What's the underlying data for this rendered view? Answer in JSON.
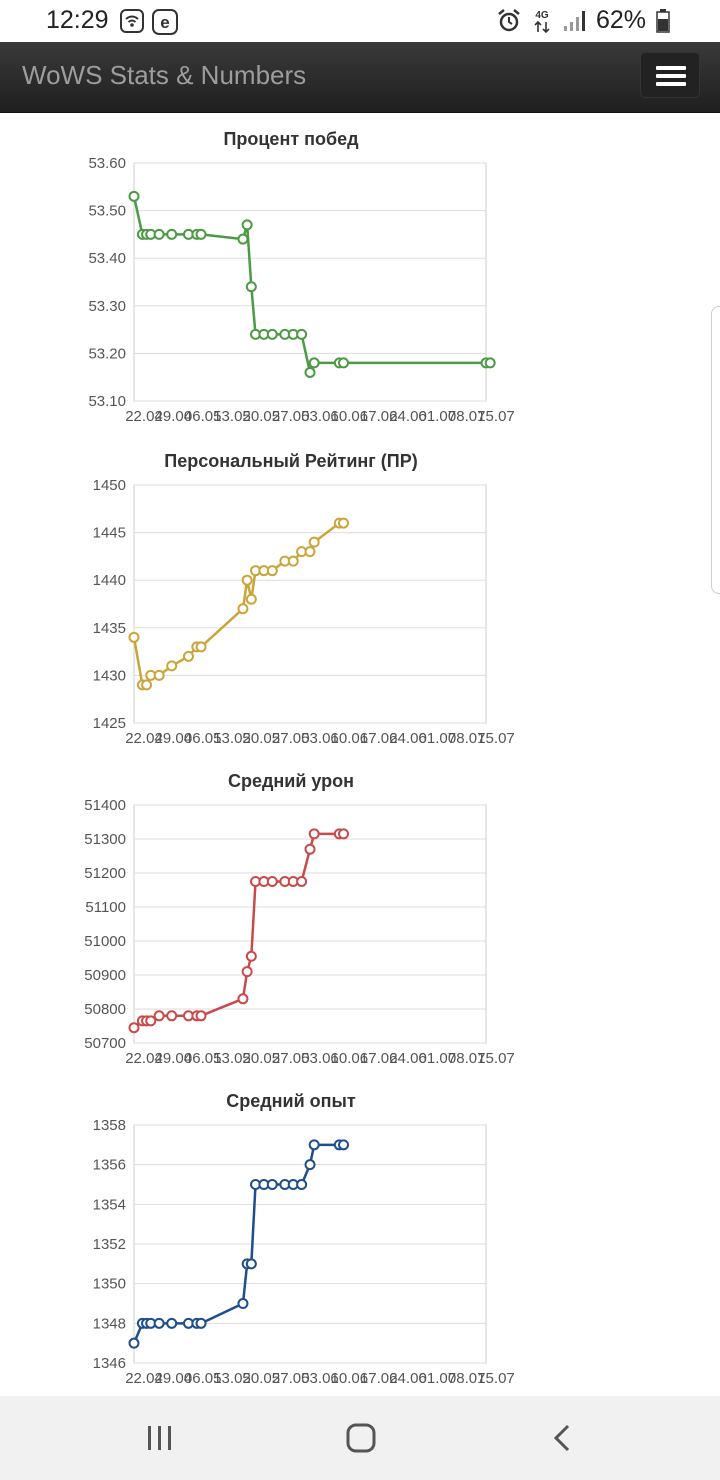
{
  "status_bar": {
    "time": "12:29",
    "left_icons": [
      "wifi-calling-icon",
      "e-badge-icon"
    ],
    "right_icons": [
      "alarm-icon",
      "4g-icon",
      "signal-icon"
    ],
    "battery": "62%",
    "network": "4G"
  },
  "header": {
    "title": "WoWS Stats & Numbers",
    "menu_icon": "hamburger-menu-icon"
  },
  "chart_data": [
    {
      "type": "line",
      "title": "Процент побед",
      "color": "#4c9a44",
      "yticks": [
        "53.60",
        "53.50",
        "53.40",
        "53.30",
        "53.20",
        "53.10"
      ],
      "ylim": [
        53.1,
        53.6
      ],
      "xticks": [
        "22.04",
        "29.04",
        "06.05",
        "13.05",
        "20.05",
        "27.05",
        "03.06",
        "10.06",
        "17.06",
        "24.06",
        "01.07",
        "08.07",
        "15.07"
      ],
      "xlim": [
        0,
        84
      ],
      "grid": true,
      "x": [
        0,
        2,
        3,
        4,
        6,
        9,
        13,
        15,
        16,
        26,
        27,
        28,
        29,
        31,
        33,
        36,
        38,
        40,
        42,
        43,
        49,
        50,
        84,
        85
      ],
      "y": [
        53.53,
        53.45,
        53.45,
        53.45,
        53.45,
        53.45,
        53.45,
        53.45,
        53.45,
        53.44,
        53.47,
        53.34,
        53.24,
        53.24,
        53.24,
        53.24,
        53.24,
        53.24,
        53.16,
        53.18,
        53.18,
        53.18,
        53.18,
        53.18
      ]
    },
    {
      "type": "line",
      "title": "Персональный Рейтинг (ПР)",
      "color": "#c9a53a",
      "yticks": [
        "1450",
        "1445",
        "1440",
        "1435",
        "1430",
        "1425"
      ],
      "ylim": [
        1425,
        1450
      ],
      "xticks": [
        "22.04",
        "29.04",
        "06.05",
        "13.05",
        "20.05",
        "27.05",
        "03.06",
        "10.06",
        "17.06",
        "24.06",
        "01.07",
        "08.07",
        "15.07"
      ],
      "xlim": [
        0,
        84
      ],
      "grid": true,
      "x": [
        0,
        2,
        3,
        4,
        6,
        9,
        13,
        15,
        16,
        26,
        27,
        28,
        29,
        31,
        33,
        36,
        38,
        40,
        42,
        43,
        49,
        50
      ],
      "y": [
        1434,
        1429,
        1429,
        1430,
        1430,
        1431,
        1432,
        1433,
        1433,
        1437,
        1440,
        1438,
        1441,
        1441,
        1441,
        1442,
        1442,
        1443,
        1443,
        1444,
        1446,
        1446
      ]
    },
    {
      "type": "line",
      "title": "Средний урон",
      "color": "#c84a4a",
      "yticks": [
        "51400",
        "51300",
        "51200",
        "51100",
        "51000",
        "50900",
        "50800",
        "50700"
      ],
      "ylim": [
        50700,
        51400
      ],
      "xticks": [
        "22.04",
        "29.04",
        "06.05",
        "13.05",
        "20.05",
        "27.05",
        "03.06",
        "10.06",
        "17.06",
        "24.06",
        "01.07",
        "08.07",
        "15.07"
      ],
      "xlim": [
        0,
        84
      ],
      "grid": true,
      "x": [
        0,
        2,
        3,
        4,
        6,
        9,
        13,
        15,
        16,
        26,
        27,
        28,
        29,
        31,
        33,
        36,
        38,
        40,
        42,
        43,
        49,
        50
      ],
      "y": [
        50745,
        50765,
        50765,
        50765,
        50780,
        50780,
        50780,
        50780,
        50780,
        50830,
        50910,
        50955,
        51175,
        51175,
        51175,
        51175,
        51175,
        51175,
        51270,
        51315,
        51315,
        51315
      ]
    },
    {
      "type": "line",
      "title": "Средний опыт",
      "color": "#1f4e8c",
      "yticks": [
        "1358",
        "1356",
        "1354",
        "1352",
        "1350",
        "1348",
        "1346"
      ],
      "ylim": [
        1346,
        1358
      ],
      "xticks": [
        "22.04",
        "29.04",
        "06.05",
        "13.05",
        "20.05",
        "27.05",
        "03.06",
        "10.06",
        "17.06",
        "24.06",
        "01.07",
        "08.07",
        "15.07"
      ],
      "xlim": [
        0,
        84
      ],
      "grid": true,
      "x": [
        0,
        2,
        3,
        4,
        6,
        9,
        13,
        15,
        16,
        26,
        27,
        28,
        29,
        31,
        33,
        36,
        38,
        40,
        42,
        43,
        49,
        50
      ],
      "y": [
        1347,
        1348,
        1348,
        1348,
        1348,
        1348,
        1348,
        1348,
        1348,
        1349,
        1351,
        1351,
        1355,
        1355,
        1355,
        1355,
        1355,
        1355,
        1356,
        1357,
        1357,
        1357
      ]
    }
  ],
  "nav_bar": {
    "recents_icon": "recents-icon",
    "home_icon": "home-icon",
    "back_icon": "back-icon"
  }
}
